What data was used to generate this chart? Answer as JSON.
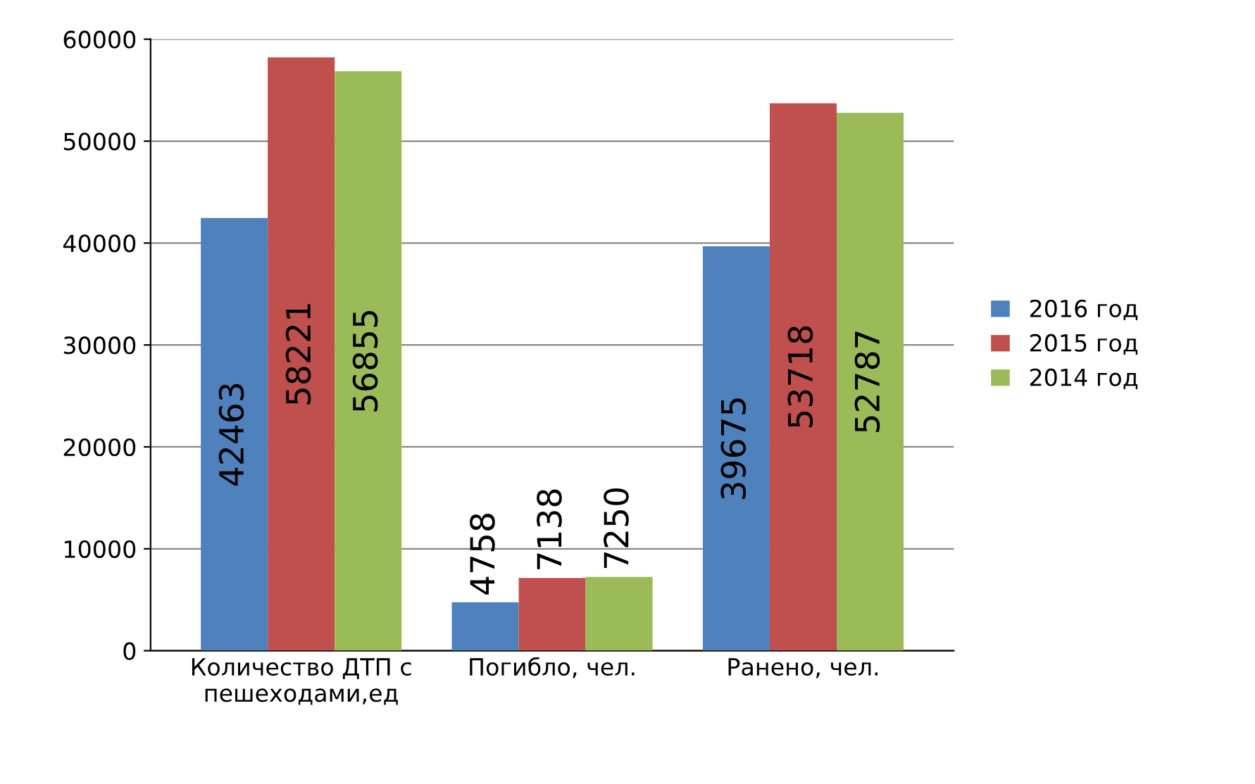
{
  "chart_data": {
    "type": "bar",
    "categories": [
      "Количество ДТП с пешеходами,ед",
      "Погибло, чел.",
      "Ранено, чел."
    ],
    "series": [
      {
        "name": "2016 год",
        "color": "#4f81bd",
        "values": [
          42463,
          4758,
          39675
        ]
      },
      {
        "name": "2015 год",
        "color": "#c0504d",
        "values": [
          58221,
          7138,
          53718
        ]
      },
      {
        "name": "2014 год",
        "color": "#9bbb59",
        "values": [
          56855,
          7250,
          52787
        ]
      }
    ],
    "ylim": [
      0,
      60000
    ],
    "yticks": [
      0,
      10000,
      20000,
      30000,
      40000,
      50000,
      60000
    ],
    "grid": "y",
    "legend": "right",
    "data_labels": true
  }
}
